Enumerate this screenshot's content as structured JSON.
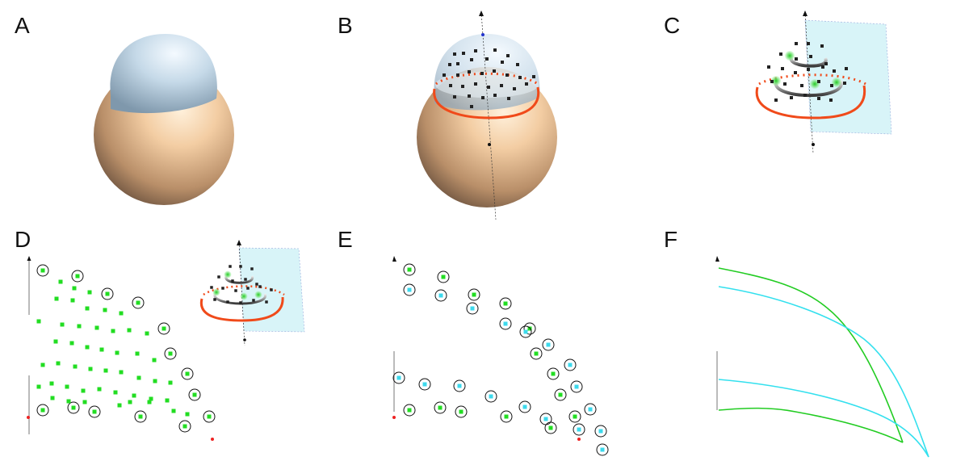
{
  "panels": {
    "A": "A",
    "B": "B",
    "C": "C",
    "D": "D",
    "E": "E",
    "F": "F"
  },
  "colors": {
    "sphere": "#e8c39c",
    "cap": "#bcd3e4",
    "cut_curve": "#f04a1a",
    "green_point": "#22dd22",
    "cyan_point": "#3dd9ec",
    "black_point": "#222222",
    "plane": "#d8f4f8",
    "curve_green": "#22cc22",
    "curve_cyan": "#33e0ee"
  }
}
